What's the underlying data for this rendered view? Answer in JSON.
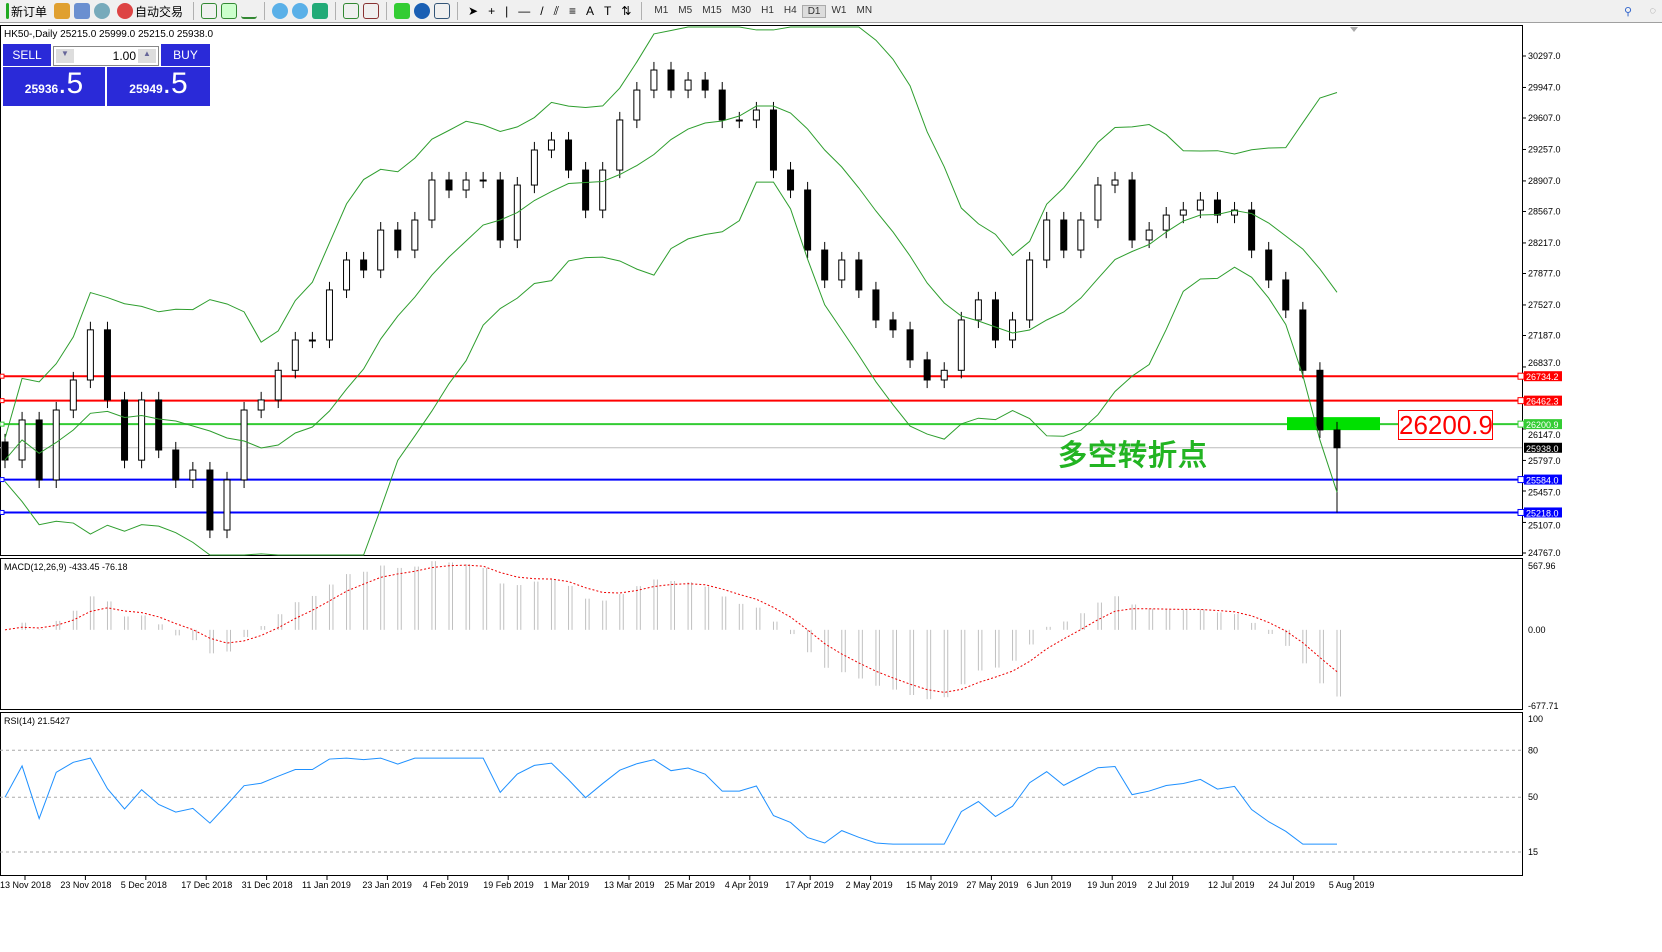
{
  "toolbar": {
    "new_order": "新订单",
    "auto_trading": "自动交易",
    "timeframes": [
      "M1",
      "M5",
      "M15",
      "M30",
      "H1",
      "H4",
      "D1",
      "W1",
      "MN"
    ],
    "active_timeframe": "D1",
    "icons": [
      "new-order-icon",
      "market-watch-icon",
      "navigator-icon",
      "signals-icon",
      "auto-trading-icon",
      "bar-chart-icon",
      "candlestick-icon",
      "line-chart-icon",
      "zoom-in-icon",
      "zoom-out-icon",
      "tile-windows-icon",
      "autoscroll-icon",
      "chart-shift-icon",
      "indicators-icon",
      "periods-icon",
      "templates-icon",
      "cursor-icon",
      "crosshair-icon",
      "vertical-line-icon",
      "horizontal-line-icon",
      "trendline-icon",
      "equidistant-channel-icon",
      "fibonacci-icon",
      "text-icon",
      "text-label-icon",
      "arrows-icon"
    ]
  },
  "chart": {
    "symbol_info": "HK50-,Daily  25215.0 25999.0 25215.0 25938.0",
    "trade_panel": {
      "sell": "SELL",
      "buy": "BUY",
      "lot": "1.00",
      "sell_price_main": "25936",
      "sell_price_frac": ".5",
      "buy_price_main": "25949",
      "buy_price_frac": ".5",
      "color": "#2a2ad8"
    },
    "price_axis": [
      "30297.0",
      "29947.0",
      "29607.0",
      "29257.0",
      "28907.0",
      "28567.0",
      "28217.0",
      "27877.0",
      "27527.0",
      "27187.0",
      "26837.0",
      "26147.0",
      "25797.0",
      "25457.0",
      "25107.0",
      "24767.0"
    ],
    "price_range": [
      24767,
      30297
    ],
    "levels": [
      {
        "value": "26734.2",
        "color": "#ff0000"
      },
      {
        "value": "26462.3",
        "color": "#ff0000"
      },
      {
        "value": "26200.9",
        "color": "#33cc33"
      },
      {
        "value": "25938.0",
        "color": "#000000"
      },
      {
        "value": "25584.0",
        "color": "#0000ff"
      },
      {
        "value": "25218.0",
        "color": "#0000ff"
      }
    ],
    "annotation_text": "多空转折点",
    "annotation_price": "26200.9",
    "closes": [
      25802,
      26247,
      25580,
      26358,
      26692,
      27250,
      26470,
      25800,
      26470,
      25913,
      25580,
      25690,
      25023,
      25580,
      26358,
      26470,
      26800,
      27137,
      27137,
      27694,
      28027,
      27916,
      28360,
      28138,
      28472,
      28917,
      28806,
      28917,
      28917,
      28250,
      28861,
      29251,
      29362,
      29028,
      28583,
      29028,
      29585,
      29918,
      30141,
      29918,
      30029,
      29918,
      29585,
      29585,
      29696,
      29028,
      28806,
      28138,
      27805,
      28027,
      27694,
      27360,
      27250,
      26916,
      26692,
      26800,
      27360,
      27583,
      27137,
      27360,
      28027,
      28472,
      28138,
      28472,
      28861,
      28917,
      28250,
      28360,
      28527,
      28583,
      28694,
      28527,
      28583,
      28138,
      27805,
      27471,
      26800,
      26136,
      25938
    ],
    "last_low": 25218,
    "macd": {
      "label": "MACD(12,26,9) -433.45 -76.18",
      "axis": [
        "567.96",
        "0.00",
        "-677.71"
      ]
    },
    "rsi": {
      "label": "RSI(14) 21.5427",
      "axis": [
        "100",
        "80",
        "50",
        "15"
      ]
    },
    "dates": [
      "13 Nov 2018",
      "23 Nov 2018",
      "5 Dec 2018",
      "17 Dec 2018",
      "31 Dec 2018",
      "11 Jan 2019",
      "23 Jan 2019",
      "4 Feb 2019",
      "19 Feb 2019",
      "1 Mar 2019",
      "13 Mar 2019",
      "25 Mar 2019",
      "4 Apr 2019",
      "17 Apr 2019",
      "2 May 2019",
      "15 May 2019",
      "27 May 2019",
      "6 Jun 2019",
      "19 Jun 2019",
      "2 Jul 2019",
      "12 Jul 2019",
      "24 Jul 2019",
      "5 Aug 2019"
    ]
  }
}
